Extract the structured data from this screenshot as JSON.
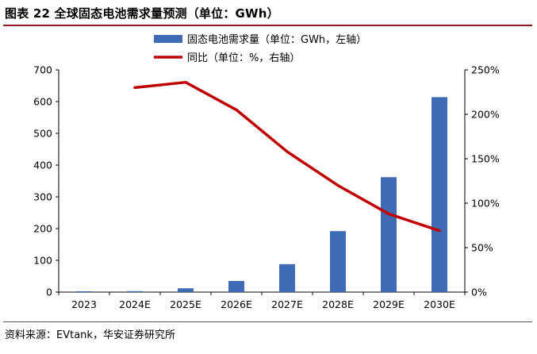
{
  "figure": {
    "title": "图表 22 全球固态电池需求量预测（单位：GWh）",
    "source": "资料来源：EVtank，华安证券研究所"
  },
  "chart_data": {
    "type": "bar",
    "categories": [
      "2023",
      "2024E",
      "2025E",
      "2026E",
      "2027E",
      "2028E",
      "2029E",
      "2030E"
    ],
    "series": [
      {
        "name": "固态电池需求量（单位：GWh，左轴）",
        "type": "bar",
        "axis": "left",
        "color": "#3f6bb5",
        "values": [
          1,
          3,
          12,
          35,
          88,
          192,
          362,
          614
        ]
      },
      {
        "name": "同比（单位：%，右轴）",
        "type": "line",
        "axis": "right",
        "color": "#c00000",
        "values": [
          null,
          230,
          236,
          205,
          158,
          120,
          88,
          69
        ]
      }
    ],
    "y_left": {
      "min": 0,
      "max": 700,
      "ticks": [
        0,
        100,
        200,
        300,
        400,
        500,
        600,
        700
      ]
    },
    "y_right": {
      "min": 0,
      "max": 250,
      "ticks": [
        "0%",
        "50%",
        "100%",
        "150%",
        "200%",
        "250%"
      ],
      "tick_values": [
        0,
        50,
        100,
        150,
        200,
        250
      ]
    },
    "grid": false,
    "legend": "top-center"
  }
}
